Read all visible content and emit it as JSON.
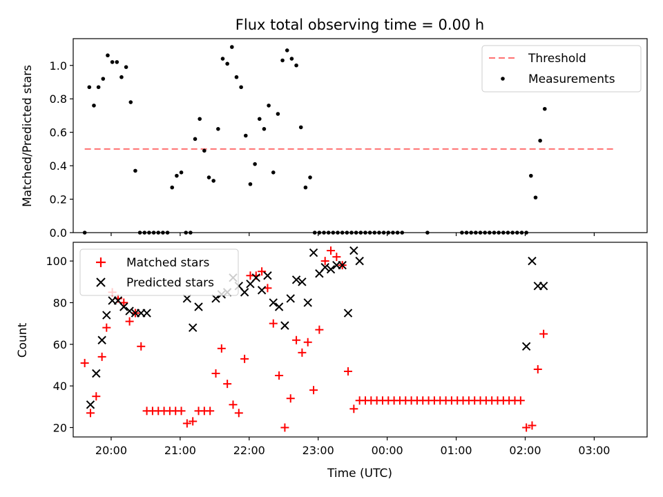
{
  "chart_data": [
    {
      "type": "scatter",
      "title": "Flux total observing time = 0.00 h",
      "xlabel": "",
      "ylabel": "Matched/Predicted stars",
      "xlim": [
        "19:27",
        "03:46"
      ],
      "ylim": [
        0,
        1.16
      ],
      "yticks": [
        0.0,
        0.2,
        0.4,
        0.6,
        0.8,
        1.0
      ],
      "ytick_labels": [
        "0.0",
        "0.2",
        "0.4",
        "0.6",
        "0.8",
        "1.0"
      ],
      "xticks": [
        "20:00",
        "21:00",
        "22:00",
        "23:00",
        "00:00",
        "01:00",
        "02:00",
        "03:00"
      ],
      "grid": false,
      "legend": "top-right",
      "threshold": {
        "name": "Threshold",
        "y": 0.5,
        "x_start": "19:37",
        "x_end": "03:17",
        "color": "#ff7070"
      },
      "series": [
        {
          "name": "Measurements",
          "color": "#000000",
          "points": [
            [
              "19:37",
              0.0
            ],
            [
              "19:41",
              0.87
            ],
            [
              "19:45",
              0.76
            ],
            [
              "19:49",
              0.87
            ],
            [
              "19:53",
              0.92
            ],
            [
              "19:57",
              1.06
            ],
            [
              "20:01",
              1.02
            ],
            [
              "20:05",
              1.02
            ],
            [
              "20:09",
              0.93
            ],
            [
              "20:13",
              0.99
            ],
            [
              "20:17",
              0.78
            ],
            [
              "20:21",
              0.37
            ],
            [
              "20:25",
              0.0
            ],
            [
              "20:29",
              0.0
            ],
            [
              "20:33",
              0.0
            ],
            [
              "20:37",
              0.0
            ],
            [
              "20:41",
              0.0
            ],
            [
              "20:45",
              0.0
            ],
            [
              "20:49",
              0.0
            ],
            [
              "20:53",
              0.27
            ],
            [
              "20:57",
              0.34
            ],
            [
              "21:01",
              0.36
            ],
            [
              "21:05",
              0.0
            ],
            [
              "21:09",
              0.0
            ],
            [
              "21:13",
              0.56
            ],
            [
              "21:17",
              0.68
            ],
            [
              "21:21",
              0.49
            ],
            [
              "21:25",
              0.33
            ],
            [
              "21:29",
              0.31
            ],
            [
              "21:33",
              0.62
            ],
            [
              "21:37",
              1.04
            ],
            [
              "21:41",
              1.01
            ],
            [
              "21:45",
              1.11
            ],
            [
              "21:49",
              0.93
            ],
            [
              "21:53",
              0.87
            ],
            [
              "21:57",
              0.58
            ],
            [
              "22:01",
              0.29
            ],
            [
              "22:05",
              0.41
            ],
            [
              "22:09",
              0.68
            ],
            [
              "22:13",
              0.62
            ],
            [
              "22:17",
              0.76
            ],
            [
              "22:21",
              0.36
            ],
            [
              "22:25",
              0.71
            ],
            [
              "22:29",
              1.03
            ],
            [
              "22:33",
              1.09
            ],
            [
              "22:37",
              1.04
            ],
            [
              "22:41",
              1.0
            ],
            [
              "22:45",
              0.63
            ],
            [
              "22:49",
              0.27
            ],
            [
              "22:53",
              0.33
            ],
            [
              "22:57",
              0.0
            ],
            [
              "23:01",
              0.0
            ],
            [
              "23:05",
              0.0
            ],
            [
              "23:09",
              0.0
            ],
            [
              "23:13",
              0.0
            ],
            [
              "23:17",
              0.0
            ],
            [
              "23:21",
              0.0
            ],
            [
              "23:25",
              0.0
            ],
            [
              "23:29",
              0.0
            ],
            [
              "23:33",
              0.0
            ],
            [
              "23:37",
              0.0
            ],
            [
              "23:41",
              0.0
            ],
            [
              "23:45",
              0.0
            ],
            [
              "23:49",
              0.0
            ],
            [
              "23:53",
              0.0
            ],
            [
              "23:57",
              0.0
            ],
            [
              "00:01",
              0.0
            ],
            [
              "00:05",
              0.0
            ],
            [
              "00:09",
              0.0
            ],
            [
              "00:13",
              0.0
            ],
            [
              "00:35",
              0.0
            ],
            [
              "01:05",
              0.0
            ],
            [
              "01:09",
              0.0
            ],
            [
              "01:13",
              0.0
            ],
            [
              "01:17",
              0.0
            ],
            [
              "01:21",
              0.0
            ],
            [
              "01:25",
              0.0
            ],
            [
              "01:29",
              0.0
            ],
            [
              "01:33",
              0.0
            ],
            [
              "01:37",
              0.0
            ],
            [
              "01:41",
              0.0
            ],
            [
              "01:45",
              0.0
            ],
            [
              "01:49",
              0.0
            ],
            [
              "01:53",
              0.0
            ],
            [
              "01:57",
              0.0
            ],
            [
              "02:01",
              0.0
            ],
            [
              "02:05",
              0.34
            ],
            [
              "02:09",
              0.21
            ],
            [
              "02:13",
              0.55
            ],
            [
              "02:17",
              0.74
            ]
          ]
        }
      ]
    },
    {
      "type": "scatter",
      "title": "",
      "xlabel": "Time (UTC)",
      "ylabel": "Count",
      "xlim": [
        "19:27",
        "03:46"
      ],
      "ylim": [
        15.5,
        109
      ],
      "yticks": [
        20,
        40,
        60,
        80,
        100
      ],
      "ytick_labels": [
        "20",
        "40",
        "60",
        "80",
        "100"
      ],
      "xticks": [
        "20:00",
        "21:00",
        "22:00",
        "23:00",
        "00:00",
        "01:00",
        "02:00",
        "03:00"
      ],
      "grid": false,
      "legend": "top-left",
      "series": [
        {
          "name": "Matched stars",
          "marker": "plus",
          "color": "#ff0000",
          "points": [
            [
              "19:37",
              51
            ],
            [
              "19:42",
              27
            ],
            [
              "19:47",
              35
            ],
            [
              "19:52",
              54
            ],
            [
              "19:56",
              68
            ],
            [
              "20:01",
              85
            ],
            [
              "20:06",
              82
            ],
            [
              "20:11",
              80
            ],
            [
              "20:16",
              71
            ],
            [
              "20:21",
              75
            ],
            [
              "20:26",
              59
            ],
            [
              "20:31",
              28
            ],
            [
              "20:36",
              28
            ],
            [
              "20:41",
              28
            ],
            [
              "20:46",
              28
            ],
            [
              "20:51",
              28
            ],
            [
              "20:56",
              28
            ],
            [
              "21:01",
              28
            ],
            [
              "21:06",
              22
            ],
            [
              "21:11",
              23
            ],
            [
              "21:16",
              28
            ],
            [
              "21:21",
              28
            ],
            [
              "21:26",
              28
            ],
            [
              "21:31",
              46
            ],
            [
              "21:36",
              58
            ],
            [
              "21:41",
              41
            ],
            [
              "21:46",
              31
            ],
            [
              "21:51",
              27
            ],
            [
              "21:56",
              53
            ],
            [
              "22:01",
              93
            ],
            [
              "22:06",
              93
            ],
            [
              "22:11",
              95
            ],
            [
              "22:16",
              87
            ],
            [
              "22:21",
              70
            ],
            [
              "22:26",
              45
            ],
            [
              "22:31",
              20
            ],
            [
              "22:36",
              34
            ],
            [
              "22:41",
              62
            ],
            [
              "22:46",
              56
            ],
            [
              "22:51",
              61
            ],
            [
              "22:56",
              38
            ],
            [
              "23:01",
              67
            ],
            [
              "23:06",
              100
            ],
            [
              "23:11",
              105
            ],
            [
              "23:16",
              102
            ],
            [
              "23:21",
              98
            ],
            [
              "23:26",
              47
            ],
            [
              "23:31",
              29
            ],
            [
              "23:36",
              33
            ],
            [
              "23:41",
              33
            ],
            [
              "23:46",
              33
            ],
            [
              "23:51",
              33
            ],
            [
              "23:56",
              33
            ],
            [
              "00:01",
              33
            ],
            [
              "00:06",
              33
            ],
            [
              "00:11",
              33
            ],
            [
              "00:16",
              33
            ],
            [
              "00:21",
              33
            ],
            [
              "00:26",
              33
            ],
            [
              "00:31",
              33
            ],
            [
              "00:36",
              33
            ],
            [
              "00:41",
              33
            ],
            [
              "00:46",
              33
            ],
            [
              "00:51",
              33
            ],
            [
              "00:56",
              33
            ],
            [
              "01:01",
              33
            ],
            [
              "01:06",
              33
            ],
            [
              "01:11",
              33
            ],
            [
              "01:16",
              33
            ],
            [
              "01:21",
              33
            ],
            [
              "01:26",
              33
            ],
            [
              "01:31",
              33
            ],
            [
              "01:36",
              33
            ],
            [
              "01:41",
              33
            ],
            [
              "01:46",
              33
            ],
            [
              "01:51",
              33
            ],
            [
              "01:56",
              33
            ],
            [
              "02:01",
              20
            ],
            [
              "02:06",
              21
            ],
            [
              "02:11",
              48
            ],
            [
              "02:16",
              65
            ]
          ]
        },
        {
          "name": "Predicted stars",
          "marker": "x",
          "color": "#000000",
          "points": [
            [
              "19:42",
              31
            ],
            [
              "19:47",
              46
            ],
            [
              "19:52",
              62
            ],
            [
              "19:56",
              74
            ],
            [
              "20:01",
              81
            ],
            [
              "20:06",
              81
            ],
            [
              "20:11",
              78
            ],
            [
              "20:16",
              76
            ],
            [
              "20:21",
              75
            ],
            [
              "20:26",
              75
            ],
            [
              "20:31",
              75
            ],
            [
              "21:06",
              82
            ],
            [
              "21:11",
              68
            ],
            [
              "21:16",
              78
            ],
            [
              "21:31",
              82
            ],
            [
              "21:36",
              84
            ],
            [
              "21:41",
              85
            ],
            [
              "21:46",
              92
            ],
            [
              "21:51",
              88
            ],
            [
              "21:56",
              85
            ],
            [
              "22:01",
              89
            ],
            [
              "22:06",
              92
            ],
            [
              "22:11",
              86
            ],
            [
              "22:16",
              93
            ],
            [
              "22:21",
              80
            ],
            [
              "22:26",
              78
            ],
            [
              "22:31",
              69
            ],
            [
              "22:36",
              82
            ],
            [
              "22:41",
              91
            ],
            [
              "22:46",
              90
            ],
            [
              "22:51",
              80
            ],
            [
              "22:56",
              104
            ],
            [
              "23:01",
              94
            ],
            [
              "23:06",
              97
            ],
            [
              "23:11",
              96
            ],
            [
              "23:16",
              98
            ],
            [
              "23:21",
              98
            ],
            [
              "23:26",
              75
            ],
            [
              "23:31",
              105
            ],
            [
              "23:36",
              100
            ],
            [
              "02:01",
              59
            ],
            [
              "02:06",
              100
            ],
            [
              "02:11",
              88
            ],
            [
              "02:16",
              88
            ]
          ]
        }
      ]
    }
  ]
}
